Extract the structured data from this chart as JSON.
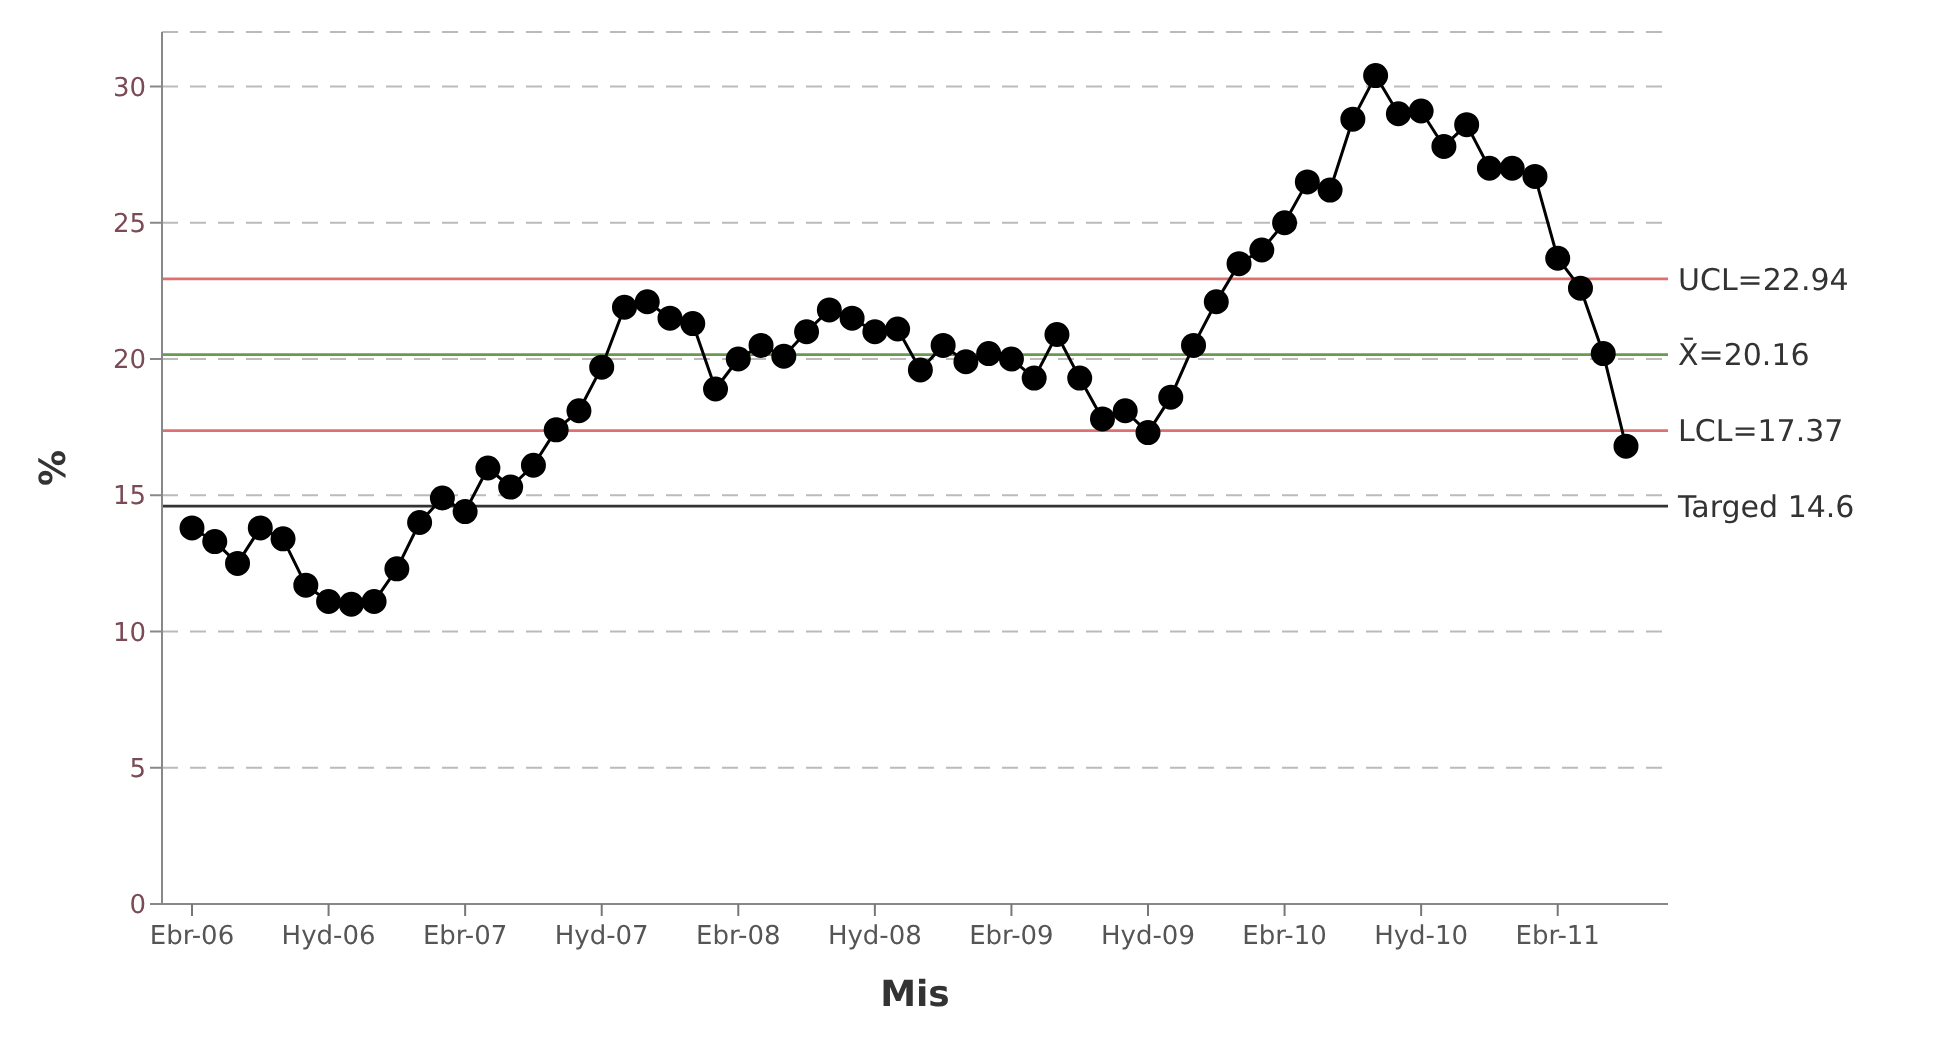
{
  "chart_data": {
    "type": "line",
    "xlabel": "Mis",
    "ylabel": "%",
    "categories": [
      "Ebr-06",
      null,
      null,
      null,
      null,
      null,
      "Hyd-06",
      null,
      null,
      null,
      null,
      null,
      "Ebr-07",
      null,
      null,
      null,
      null,
      null,
      "Hyd-07",
      null,
      null,
      null,
      null,
      null,
      "Ebr-08",
      null,
      null,
      null,
      null,
      null,
      "Hyd-08",
      null,
      null,
      null,
      null,
      null,
      "Ebr-09",
      null,
      null,
      null,
      null,
      null,
      "Hyd-09",
      null,
      null,
      null,
      null,
      null,
      "Ebr-10",
      null,
      null,
      null,
      null,
      null,
      "Hyd-10",
      null,
      null,
      null,
      null,
      null,
      "Ebr-11",
      null,
      null,
      null
    ],
    "series": [
      {
        "color": "#000000",
        "values": [
          13.8,
          13.3,
          12.5,
          13.8,
          13.4,
          11.7,
          11.1,
          11.0,
          11.1,
          12.3,
          14.0,
          14.9,
          14.4,
          16.0,
          15.3,
          16.1,
          17.4,
          18.1,
          19.7,
          21.9,
          22.1,
          21.5,
          21.3,
          18.9,
          20.0,
          20.5,
          20.1,
          21.0,
          21.8,
          21.5,
          21.0,
          21.1,
          19.6,
          20.5,
          19.9,
          20.2,
          20.0,
          19.3,
          20.9,
          19.3,
          17.8,
          18.1,
          17.3,
          18.6,
          20.5,
          22.1,
          23.5,
          24.0,
          25.0,
          26.5,
          26.2,
          28.8,
          30.4,
          29.0,
          29.1,
          27.8,
          28.6,
          27.0,
          27.0,
          26.7,
          23.7,
          22.6,
          20.2,
          16.8
        ]
      }
    ],
    "ylim": [
      0,
      32
    ],
    "yticks": [
      0,
      5,
      10,
      15,
      20,
      25,
      30
    ],
    "grid": "y",
    "marker": "circle",
    "line_style": "solid",
    "legend": false,
    "ref_lines": [
      {
        "axis": "y",
        "value": 22.94,
        "label": "UCL=22.94",
        "color": "#e07070"
      },
      {
        "axis": "y",
        "value": 20.16,
        "label": "X̄=20.16",
        "color": "#6a9a50"
      },
      {
        "axis": "y",
        "value": 17.37,
        "label": "LCL=17.37",
        "color": "#e07070"
      },
      {
        "axis": "y",
        "value": 14.6,
        "label": "Targed 14.6",
        "color": "#333333"
      }
    ]
  }
}
